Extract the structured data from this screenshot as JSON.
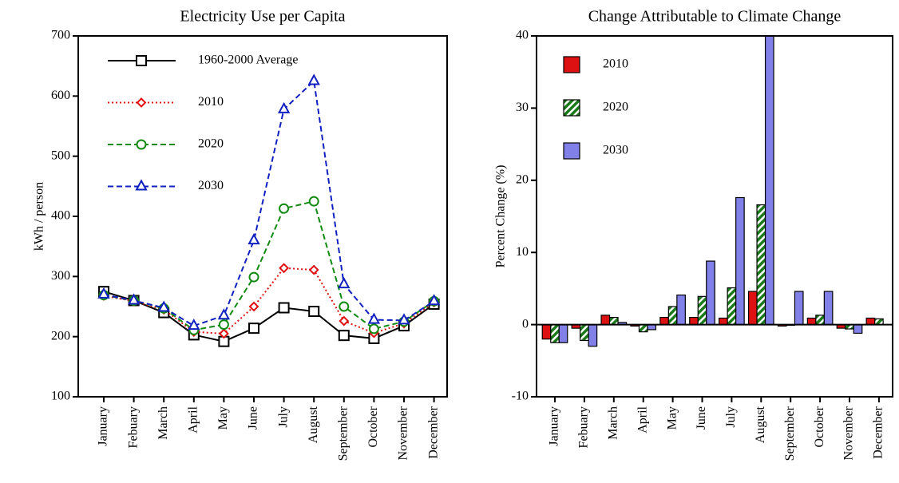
{
  "chart_data": [
    {
      "type": "line",
      "title": "Electricity Use per Capita",
      "y_label": "kWh / person",
      "categories": [
        "January",
        "Febuary",
        "March",
        "April",
        "May",
        "June",
        "July",
        "August",
        "September",
        "October",
        "November",
        "December"
      ],
      "ylim": [
        100,
        700
      ],
      "yticks": [
        100,
        200,
        300,
        400,
        500,
        600,
        700
      ],
      "series": [
        {
          "name": "1960-2000  Average",
          "color": "#000000",
          "linestyle": "solid",
          "marker": "square",
          "values": [
            275,
            260,
            240,
            203,
            192,
            214,
            248,
            242,
            202,
            197,
            218,
            254
          ]
        },
        {
          "name": "2010",
          "color": "#e01010",
          "linestyle": "dotted",
          "marker": "diamond",
          "values": [
            268,
            259,
            245,
            208,
            205,
            250,
            314,
            311,
            226,
            206,
            222,
            257
          ]
        },
        {
          "name": "2020",
          "color": "#108a10",
          "linestyle": "dashed",
          "marker": "circle",
          "values": [
            269,
            260,
            247,
            211,
            220,
            299,
            413,
            425,
            250,
            213,
            225,
            259
          ]
        },
        {
          "name": "2030",
          "color": "#1020c0",
          "linestyle": "dashed",
          "marker": "triangle",
          "values": [
            270,
            260,
            248,
            218,
            235,
            360,
            578,
            625,
            287,
            228,
            227,
            259
          ]
        }
      ]
    },
    {
      "type": "bar",
      "title": "Change Attributable to Climate Change",
      "y_label": "Percent Change (%)",
      "categories": [
        "January",
        "Febuary",
        "March",
        "April",
        "May",
        "June",
        "July",
        "August",
        "September",
        "October",
        "November",
        "December"
      ],
      "ylim": [
        -10,
        40
      ],
      "yticks": [
        -10,
        0,
        10,
        20,
        30,
        40
      ],
      "series": [
        {
          "name": "2010",
          "color": "#dd1111",
          "hatch": false,
          "values": [
            -2,
            -0.5,
            1.3,
            -0.2,
            1,
            1,
            0.9,
            4.6,
            -0.2,
            0.9,
            -0.5,
            0.9
          ]
        },
        {
          "name": "2020",
          "color": "#1a7a1a",
          "hatch": true,
          "values": [
            -2.5,
            -2.2,
            1,
            -1,
            2.5,
            3.9,
            5.1,
            16.6,
            -0.1,
            1.3,
            -0.6,
            0.8
          ]
        },
        {
          "name": "2030",
          "color": "#8080e8",
          "hatch": false,
          "values": [
            -2.5,
            -3,
            0.3,
            -0.7,
            4.1,
            8.8,
            17.6,
            40,
            4.6,
            4.6,
            -1.2,
            0
          ]
        }
      ]
    }
  ]
}
